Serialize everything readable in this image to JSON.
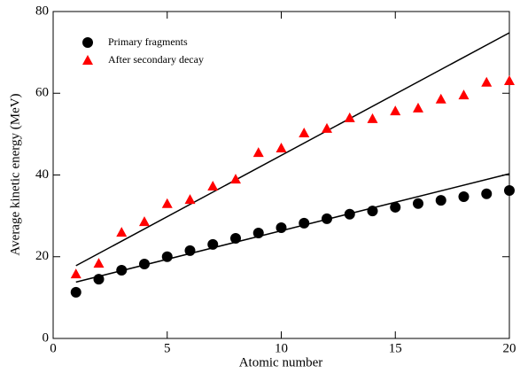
{
  "chart_data": {
    "type": "scatter",
    "x_label": "Atomic number",
    "y_label": "Average kinetic energy (MeV)",
    "xlim": [
      0,
      20
    ],
    "ylim": [
      0,
      80
    ],
    "xticks": [
      0,
      5,
      10,
      15,
      20
    ],
    "yticks": [
      0,
      20,
      40,
      60,
      80
    ],
    "legend": "upper left",
    "series": [
      {
        "name": "Primary fragments",
        "color": "#000000",
        "marker": "circle",
        "x": [
          1,
          2,
          3,
          4,
          5,
          6,
          7,
          8,
          9,
          10,
          11,
          12,
          13,
          14,
          15,
          16,
          17,
          18,
          19,
          20
        ],
        "values": [
          11.3,
          14.5,
          16.7,
          18.2,
          20,
          21.5,
          23,
          24.5,
          25.8,
          27.1,
          28.2,
          29.3,
          30.4,
          31.2,
          32.1,
          33,
          33.8,
          34.7,
          35.4,
          36.2
        ]
      },
      {
        "name": "After secondary decay",
        "color": "#ff0000",
        "marker": "triangle",
        "x": [
          1,
          2,
          3,
          4,
          5,
          6,
          7,
          8,
          9,
          10,
          11,
          12,
          13,
          14,
          15,
          16,
          17,
          18,
          19,
          20
        ],
        "values": [
          15.8,
          18.4,
          26,
          28.6,
          33,
          34,
          37.3,
          39,
          45.5,
          46.6,
          50.3,
          51.4,
          54,
          53.8,
          55.7,
          56.4,
          58.6,
          59.6,
          62.7,
          63.1
        ]
      }
    ],
    "fits": [
      {
        "color": "#000000",
        "x": [
          1,
          20
        ],
        "values": [
          13.8,
          40.3
        ]
      },
      {
        "color": "#000000",
        "x": [
          1,
          20
        ],
        "values": [
          17.8,
          74.8
        ]
      }
    ]
  }
}
